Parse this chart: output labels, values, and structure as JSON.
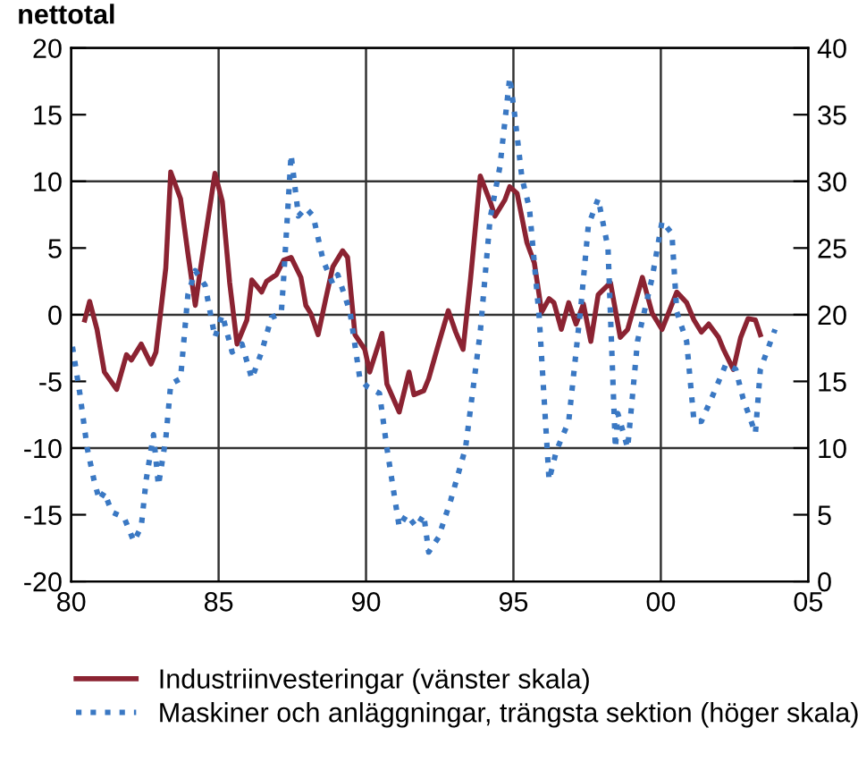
{
  "chart_data": {
    "type": "line",
    "title": "nettotal",
    "xlim": [
      "1980",
      "2005"
    ],
    "xticks": [
      {
        "value": "1980",
        "label": "80"
      },
      {
        "value": "1985",
        "label": "85"
      },
      {
        "value": "1990",
        "label": "90"
      },
      {
        "value": "1995",
        "label": "95"
      },
      {
        "value": "2000",
        "label": "00"
      },
      {
        "value": "2005",
        "label": "05"
      }
    ],
    "ylim": [
      -20,
      20
    ],
    "yticks": [
      -20,
      -15,
      -10,
      -5,
      0,
      5,
      10,
      15,
      20
    ],
    "y2lim": [
      0,
      40
    ],
    "y2ticks": [
      0,
      5,
      10,
      15,
      20,
      25,
      30,
      35,
      40
    ],
    "grid": true,
    "legend": "bottom",
    "series": [
      {
        "name": "Industriinvesteringar (vänster skala)",
        "color": "#8b2332",
        "axis": "y",
        "line_style": "solid",
        "x": [
          "1980-06",
          "1980-08",
          "1980-11",
          "1981-02",
          "1981-07",
          "1981-11",
          "1982-01",
          "1982-05",
          "1982-09",
          "1982-11",
          "1983-03",
          "1983-05",
          "1983-09",
          "1983-12",
          "1984-03",
          "1984-05",
          "1984-11",
          "1985-02",
          "1985-05",
          "1985-08",
          "1985-12",
          "1986-02",
          "1986-06",
          "1986-08",
          "1986-12",
          "1987-03",
          "1987-06",
          "1987-10",
          "1987-12",
          "1988-02",
          "1988-05",
          "1988-08",
          "1988-11",
          "1989-03",
          "1989-05",
          "1989-08",
          "1989-12",
          "1990-02",
          "1990-07",
          "1990-09",
          "1991-02",
          "1991-06",
          "1991-08",
          "1991-12",
          "1992-02",
          "1992-06",
          "1992-10",
          "1993-01",
          "1993-04",
          "1993-07",
          "1993-11",
          "1994-03",
          "1994-05",
          "1994-09",
          "1994-11",
          "1995-02",
          "1995-06",
          "1995-09",
          "1995-12",
          "1996-03",
          "1996-05",
          "1996-08",
          "1996-11",
          "1997-02",
          "1997-05",
          "1997-08",
          "1997-11",
          "1998-04",
          "1998-08",
          "1998-11",
          "1999-05",
          "1999-09",
          "2000-01",
          "2000-07",
          "2000-11",
          "2001-02",
          "2001-05",
          "2001-08",
          "2001-12",
          "2002-02",
          "2002-06",
          "2002-09",
          "2002-12",
          "2003-03",
          "2003-05"
        ],
        "values": [
          -0.4,
          1.0,
          -1.1,
          -4.3,
          -5.6,
          -3.0,
          -3.4,
          -2.2,
          -3.7,
          -2.8,
          3.5,
          10.7,
          8.7,
          4.6,
          0.7,
          3.3,
          10.6,
          8.5,
          2.4,
          -2.2,
          -0.4,
          2.6,
          1.7,
          2.5,
          3.0,
          4.1,
          4.3,
          2.8,
          0.7,
          0.1,
          -1.5,
          1.1,
          3.6,
          4.8,
          4.3,
          -1.5,
          -2.6,
          -4.3,
          -1.4,
          -5.2,
          -7.3,
          -4.3,
          -6.0,
          -5.7,
          -4.8,
          -2.2,
          0.3,
          -1.3,
          -2.6,
          2.6,
          10.4,
          8.5,
          7.4,
          8.6,
          9.6,
          9.1,
          5.4,
          3.9,
          0.2,
          1.2,
          0.9,
          -1.1,
          0.9,
          -0.7,
          0.8,
          -2.0,
          1.5,
          2.4,
          -1.7,
          -1.1,
          2.8,
          0.1,
          -1.1,
          1.7,
          0.9,
          -0.4,
          -1.3,
          -0.7,
          -1.7,
          -2.6,
          -4.1,
          -1.7,
          -0.3,
          -0.4,
          -1.5
        ]
      },
      {
        "name": "Maskiner och anläggningar, trängsta sektion (höger skala)",
        "color": "#3a78c3",
        "axis": "y2",
        "line_style": "dotted",
        "x": [
          "1980-01",
          "1980-04",
          "1980-07",
          "1980-10",
          "1980-12",
          "1981-02",
          "1981-05",
          "1981-10",
          "1982-02",
          "1982-05",
          "1982-07",
          "1982-10",
          "1982-12",
          "1983-03",
          "1983-05",
          "1983-09",
          "1983-12",
          "1984-03",
          "1984-07",
          "1984-11",
          "1985-02",
          "1985-06",
          "1985-10",
          "1986-02",
          "1986-06",
          "1986-10",
          "1987-02",
          "1987-03",
          "1987-06",
          "1987-09",
          "1987-12",
          "1988-03",
          "1988-07",
          "1988-11",
          "1989-01",
          "1989-06",
          "1989-10",
          "1990-01",
          "1990-06",
          "1990-09",
          "1991-02",
          "1991-05",
          "1991-09",
          "1991-12",
          "1992-02",
          "1992-06",
          "1992-11",
          "1993-05",
          "1993-11",
          "1994-03",
          "1994-07",
          "1994-11",
          "1995-01",
          "1995-04",
          "1995-07",
          "1995-11",
          "1996-03",
          "1996-06",
          "1996-11",
          "1997-04",
          "1997-07",
          "1997-11",
          "1998-03",
          "1998-06",
          "1998-07",
          "1998-11",
          "1999-03",
          "1999-09",
          "2000-01",
          "2000-05",
          "2000-07",
          "2000-11",
          "2001-02",
          "2001-05",
          "2001-10",
          "2002-03",
          "2002-07",
          "2002-10",
          "2003-03",
          "2003-05",
          "2003-11"
        ],
        "values": [
          17.6,
          14.1,
          10.0,
          7.4,
          6.1,
          6.7,
          5.2,
          4.8,
          3.0,
          4.1,
          7.6,
          11.0,
          7.2,
          10.7,
          14.8,
          15.2,
          21.5,
          23.3,
          22.2,
          18.3,
          20.0,
          17.2,
          17.8,
          15.2,
          17.2,
          19.8,
          20.1,
          22.8,
          32.0,
          27.4,
          28.0,
          27.4,
          24.1,
          22.3,
          23.0,
          20.2,
          15.2,
          14.6,
          14.1,
          10.0,
          4.1,
          5.0,
          4.1,
          5.0,
          2.2,
          3.3,
          6.1,
          10.0,
          18.7,
          27.2,
          31.1,
          37.8,
          35.0,
          30.2,
          28.0,
          19.8,
          7.6,
          9.8,
          12.0,
          20.7,
          26.7,
          28.7,
          25.0,
          10.0,
          12.6,
          10.0,
          18.0,
          22.8,
          27.0,
          26.1,
          20.2,
          18.0,
          12.0,
          12.0,
          14.1,
          16.3,
          15.9,
          13.7,
          11.1,
          15.9,
          18.9
        ]
      }
    ]
  }
}
